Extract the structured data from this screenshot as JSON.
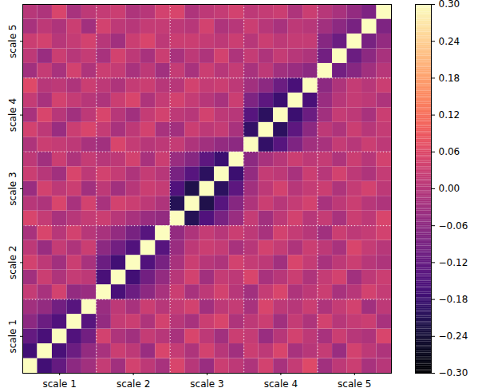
{
  "chart_data": {
    "type": "heatmap",
    "categories": [
      "scale 1",
      "scale 2",
      "scale 3",
      "scale 4",
      "scale 5"
    ],
    "color": "magma",
    "grid": true,
    "colorbar": {
      "range": [
        -0.3,
        0.3
      ],
      "ticks": [
        {
          "value": -0.3,
          "label": "−0.30"
        },
        {
          "value": -0.24,
          "label": "−0.24"
        },
        {
          "value": -0.18,
          "label": "−0.18"
        },
        {
          "value": -0.12,
          "label": "−0.12"
        },
        {
          "value": -0.06,
          "label": "−0.06"
        },
        {
          "value": 0,
          "label": "0.00"
        },
        {
          "value": 0.06,
          "label": "0.06"
        },
        {
          "value": 0.12,
          "label": "0.12"
        },
        {
          "value": 0.18,
          "label": "0.18"
        },
        {
          "value": 0.24,
          "label": "0.24"
        },
        {
          "value": 0.3,
          "label": "0.30"
        }
      ]
    },
    "cells": [
      [
        1,
        -0.17,
        -0.12,
        -0.06,
        -0.03,
        0.02,
        -0.03,
        0.04,
        0.01,
        -0.02,
        0.05,
        0.0,
        -0.04,
        0.03,
        0.01,
        -0.01,
        0.04,
        -0.02,
        0.02,
        0.06,
        -0.03,
        0.01,
        0.03,
        -0.02,
        0.0
      ],
      [
        -0.17,
        1,
        -0.16,
        -0.11,
        -0.05,
        -0.02,
        0.03,
        0.01,
        -0.04,
        0.05,
        0.02,
        -0.01,
        0.04,
        0.0,
        -0.03,
        0.03,
        0.01,
        0.05,
        -0.02,
        0.0,
        0.02,
        -0.04,
        0.04,
        0.01,
        -0.01
      ],
      [
        -0.12,
        -0.16,
        1,
        -0.15,
        -0.1,
        0.04,
        -0.01,
        -0.03,
        0.02,
        0.0,
        -0.02,
        0.05,
        0.01,
        -0.03,
        0.03,
        0.02,
        -0.04,
        0.0,
        0.04,
        0.01,
        -0.02,
        0.03,
        0.0,
        -0.01,
        0.05
      ],
      [
        -0.06,
        -0.11,
        -0.15,
        1,
        -0.14,
        -0.05,
        0.02,
        0.03,
        -0.01,
        0.04,
        0.0,
        -0.02,
        0.03,
        0.05,
        -0.01,
        0.01,
        0.03,
        -0.03,
        0.02,
        -0.01,
        0.04,
        0.0,
        0.02,
        0.03,
        -0.02
      ],
      [
        -0.03,
        -0.05,
        -0.1,
        -0.14,
        1,
        -0.04,
        0.01,
        -0.02,
        0.03,
        0.0,
        0.02,
        0.04,
        -0.03,
        0.01,
        0.02,
        -0.02,
        0.05,
        0.01,
        0.0,
        0.03,
        -0.01,
        0.02,
        0.04,
        -0.03,
        0.01
      ],
      [
        0.02,
        -0.02,
        0.04,
        -0.05,
        -0.04,
        1,
        -0.16,
        -0.11,
        -0.06,
        -0.02,
        0.03,
        -0.02,
        0.01,
        0.04,
        0.0,
        -0.03,
        0.02,
        0.05,
        -0.01,
        0.01,
        0.03,
        -0.02,
        0.0,
        0.04,
        0.02
      ],
      [
        -0.03,
        0.03,
        -0.01,
        0.02,
        0.01,
        -0.16,
        1,
        -0.17,
        -0.1,
        -0.05,
        0.0,
        0.04,
        -0.03,
        0.02,
        0.01,
        0.05,
        -0.02,
        0.0,
        0.03,
        -0.01,
        0.02,
        0.04,
        -0.03,
        0.01,
        0.03
      ],
      [
        0.04,
        0.01,
        -0.03,
        0.03,
        -0.02,
        -0.11,
        -0.17,
        1,
        -0.15,
        -0.09,
        -0.02,
        0.03,
        0.0,
        -0.01,
        0.04,
        0.02,
        0.01,
        -0.03,
        0.05,
        0.02,
        -0.02,
        0.01,
        0.03,
        0.0,
        -0.01
      ],
      [
        0.01,
        -0.04,
        0.02,
        -0.01,
        0.03,
        -0.06,
        -0.1,
        -0.15,
        1,
        -0.14,
        -0.04,
        0.01,
        0.03,
        0.02,
        -0.02,
        0.0,
        0.04,
        0.02,
        -0.01,
        0.03,
        0.01,
        -0.02,
        0.05,
        0.02,
        0.0
      ],
      [
        -0.02,
        0.05,
        0.0,
        0.04,
        0.0,
        -0.02,
        -0.05,
        -0.09,
        -0.14,
        1,
        -0.05,
        -0.01,
        0.02,
        0.0,
        0.03,
        0.01,
        -0.02,
        0.04,
        0.02,
        0.0,
        -0.03,
        0.03,
        0.01,
        0.02,
        0.04
      ],
      [
        0.05,
        0.02,
        -0.02,
        0.0,
        0.02,
        0.03,
        0.0,
        -0.02,
        -0.04,
        -0.05,
        1,
        -0.21,
        -0.15,
        -0.09,
        -0.04,
        0.02,
        -0.03,
        0.01,
        0.04,
        0.0,
        0.02,
        -0.02,
        0.03,
        0.01,
        0.05
      ],
      [
        0.0,
        -0.01,
        0.05,
        -0.02,
        0.04,
        -0.02,
        0.04,
        0.03,
        0.01,
        -0.01,
        -0.21,
        1,
        -0.22,
        -0.14,
        -0.07,
        -0.01,
        0.03,
        0.0,
        0.02,
        0.04,
        -0.02,
        0.01,
        0.03,
        0.0,
        -0.01
      ],
      [
        -0.04,
        0.04,
        0.01,
        0.03,
        -0.03,
        0.01,
        -0.03,
        0.0,
        0.03,
        0.02,
        -0.15,
        -0.22,
        1,
        -0.2,
        -0.13,
        -0.03,
        0.01,
        0.04,
        0.0,
        0.02,
        0.03,
        -0.01,
        0.02,
        0.04,
        0.01
      ],
      [
        0.03,
        0.0,
        -0.03,
        0.05,
        0.01,
        0.04,
        0.02,
        -0.01,
        0.02,
        0.0,
        -0.09,
        -0.14,
        -0.2,
        1,
        -0.18,
        -0.05,
        0.02,
        0.01,
        -0.02,
        0.03,
        0.0,
        0.04,
        0.01,
        -0.01,
        0.02
      ],
      [
        0.01,
        -0.03,
        0.03,
        -0.01,
        0.02,
        0.0,
        0.01,
        0.04,
        -0.02,
        0.03,
        -0.04,
        -0.07,
        -0.13,
        -0.18,
        1,
        -0.06,
        -0.02,
        0.0,
        0.03,
        0.01,
        0.02,
        -0.01,
        0.03,
        0.0,
        0.04
      ],
      [
        -0.01,
        0.03,
        0.02,
        0.01,
        -0.02,
        -0.03,
        0.05,
        0.02,
        0.0,
        0.01,
        0.02,
        -0.01,
        -0.03,
        -0.05,
        -0.06,
        1,
        -0.19,
        -0.14,
        -0.08,
        -0.03,
        -0.02,
        0.02,
        0.0,
        0.03,
        0.01
      ],
      [
        0.04,
        0.01,
        -0.04,
        0.03,
        0.05,
        0.02,
        -0.02,
        0.01,
        0.04,
        -0.02,
        -0.03,
        0.03,
        0.01,
        0.02,
        -0.02,
        -0.19,
        1,
        -0.2,
        -0.13,
        -0.06,
        0.01,
        -0.01,
        0.03,
        0.0,
        0.02
      ],
      [
        -0.02,
        0.05,
        0.0,
        -0.03,
        0.01,
        0.05,
        0.0,
        -0.03,
        0.02,
        0.04,
        0.01,
        0.0,
        0.04,
        0.01,
        0.0,
        -0.14,
        -0.2,
        1,
        -0.18,
        -0.11,
        -0.03,
        0.02,
        0.01,
        -0.02,
        0.03
      ],
      [
        0.02,
        -0.02,
        0.04,
        0.02,
        0.0,
        -0.01,
        0.03,
        0.05,
        -0.01,
        0.02,
        0.04,
        0.02,
        0.0,
        -0.02,
        0.03,
        -0.08,
        -0.13,
        -0.18,
        1,
        -0.16,
        -0.04,
        0.0,
        0.02,
        0.01,
        -0.01
      ],
      [
        0.06,
        0.0,
        0.01,
        -0.01,
        0.03,
        0.01,
        -0.01,
        0.02,
        0.03,
        0.0,
        0.0,
        0.04,
        0.02,
        0.03,
        0.01,
        -0.03,
        -0.06,
        -0.11,
        -0.16,
        1,
        -0.06,
        -0.01,
        0.02,
        0.0,
        0.03
      ],
      [
        -0.03,
        0.02,
        -0.02,
        0.04,
        -0.01,
        0.03,
        0.02,
        -0.02,
        0.01,
        -0.03,
        0.02,
        -0.02,
        0.03,
        0.0,
        0.02,
        -0.02,
        0.01,
        -0.03,
        -0.04,
        -0.06,
        1,
        -0.1,
        -0.07,
        -0.03,
        0.0
      ],
      [
        0.01,
        -0.04,
        0.03,
        0.0,
        0.02,
        -0.02,
        0.04,
        0.01,
        -0.02,
        0.03,
        -0.02,
        0.01,
        -0.01,
        0.04,
        -0.01,
        0.02,
        -0.01,
        0.02,
        0.0,
        -0.01,
        -0.1,
        1,
        -0.11,
        -0.06,
        -0.02
      ],
      [
        0.03,
        0.04,
        0.0,
        0.02,
        0.04,
        0.0,
        -0.03,
        0.03,
        0.05,
        0.01,
        0.03,
        0.03,
        0.02,
        0.01,
        0.03,
        0.0,
        0.03,
        0.01,
        0.02,
        0.02,
        -0.07,
        -0.11,
        1,
        -0.09,
        -0.05
      ],
      [
        -0.02,
        0.01,
        -0.01,
        0.03,
        -0.03,
        0.04,
        0.01,
        0.0,
        0.02,
        0.02,
        0.01,
        0.0,
        0.04,
        -0.01,
        0.0,
        0.03,
        0.0,
        -0.02,
        0.01,
        0.0,
        -0.03,
        -0.06,
        -0.09,
        1,
        -0.08
      ],
      [
        0.0,
        -0.01,
        0.05,
        -0.02,
        0.01,
        0.02,
        0.03,
        -0.01,
        0.0,
        0.04,
        0.05,
        -0.01,
        0.01,
        0.02,
        0.04,
        0.01,
        0.02,
        0.03,
        -0.01,
        0.03,
        0.0,
        -0.02,
        -0.05,
        -0.08,
        1
      ]
    ]
  }
}
